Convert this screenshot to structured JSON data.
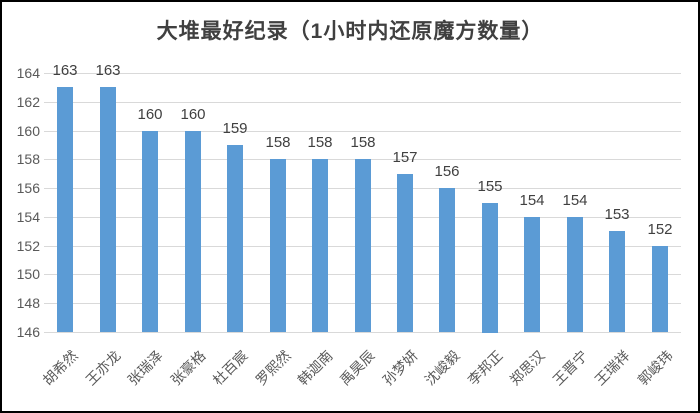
{
  "chart_data": {
    "type": "bar",
    "title": "大堆最好纪录（1小时内还原魔方数量）",
    "categories": [
      "胡希然",
      "王亦龙",
      "张瑞泽",
      "张豪格",
      "杜百宸",
      "罗熙然",
      "韩迦南",
      "禹昊辰",
      "孙梦妍",
      "沈峻毅",
      "李邦正",
      "郑思汉",
      "王晋宁",
      "王瑞祥",
      "郭峻玮"
    ],
    "values": [
      163,
      163,
      160,
      160,
      159,
      158,
      158,
      158,
      157,
      156,
      155,
      154,
      154,
      153,
      152
    ],
    "data_labels": [
      "163",
      "163",
      "160",
      "160",
      "159",
      "158",
      "158",
      "158",
      "157",
      "156",
      "155",
      "154",
      "154",
      "153",
      "152"
    ],
    "xlabel": "",
    "ylabel": "",
    "ylim": [
      146,
      164
    ],
    "yticks": [
      146,
      148,
      150,
      152,
      154,
      156,
      158,
      160,
      162,
      164
    ],
    "grid": true,
    "legend": "none",
    "colors": {
      "bar": "#5B9BD5",
      "gridline": "#D9D9D9",
      "title": "#404040",
      "data_label": "#404040",
      "axis_tick_label": "#595959",
      "frame_border": "#000000",
      "background": "#ffffff"
    }
  }
}
